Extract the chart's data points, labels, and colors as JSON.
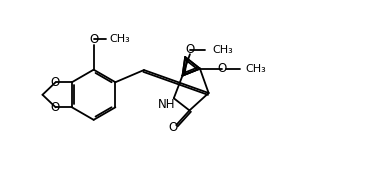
{
  "background": "#ffffff",
  "line_color": "#000000",
  "line_width": 1.3,
  "font_size": 8.5,
  "figsize": [
    3.65,
    1.93
  ],
  "dpi": 100,
  "xlim": [
    0.0,
    10.0
  ],
  "ylim": [
    0.0,
    5.5
  ]
}
